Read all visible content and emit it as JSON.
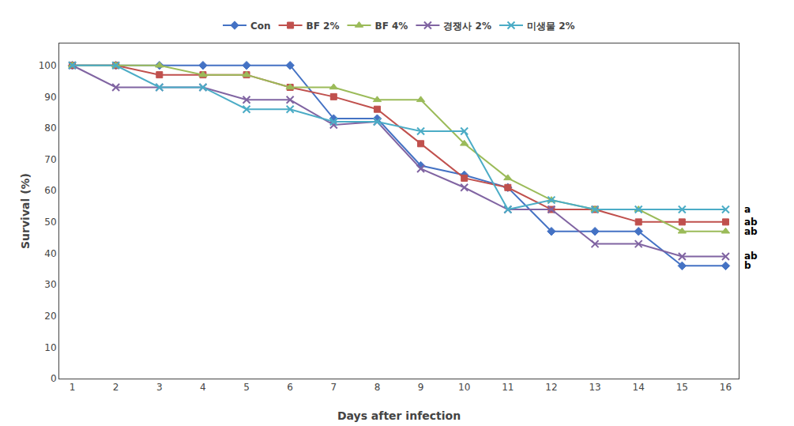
{
  "chart_data": {
    "type": "line",
    "x": [
      1,
      2,
      3,
      4,
      5,
      6,
      7,
      8,
      9,
      10,
      11,
      12,
      13,
      14,
      15,
      16
    ],
    "xlabel": "Days after infection",
    "ylabel": "Survival (%)",
    "xlim": [
      0.7,
      16.3
    ],
    "ylim": [
      0,
      107
    ],
    "xticks": [
      1,
      2,
      3,
      4,
      5,
      6,
      7,
      8,
      9,
      10,
      11,
      12,
      13,
      14,
      15,
      16
    ],
    "yticks": [
      0,
      10,
      20,
      30,
      40,
      50,
      60,
      70,
      80,
      90,
      100
    ],
    "grid": false,
    "legend": "top",
    "series": [
      {
        "name": "Con",
        "color": "#4472C4",
        "marker": "diamond",
        "values": [
          100,
          100,
          100,
          100,
          100,
          100,
          83,
          83,
          68,
          65,
          61,
          47,
          47,
          47,
          36,
          36
        ]
      },
      {
        "name": "BF 2%",
        "color": "#C0504D",
        "marker": "square",
        "values": [
          100,
          100,
          97,
          97,
          97,
          93,
          90,
          86,
          75,
          64,
          61,
          54,
          54,
          50,
          50,
          50
        ]
      },
      {
        "name": "BF 4%",
        "color": "#9BBB59",
        "marker": "triangle-up",
        "values": [
          100,
          100,
          100,
          97,
          97,
          93,
          93,
          89,
          89,
          75,
          64,
          57,
          54,
          54,
          47,
          47
        ]
      },
      {
        "name": "경쟁사 2%",
        "color": "#8064A2",
        "marker": "x",
        "values": [
          100,
          93,
          93,
          93,
          89,
          89,
          81,
          82,
          67,
          61,
          54,
          54,
          43,
          43,
          39,
          39
        ]
      },
      {
        "name": "미생물 2%",
        "color": "#4BACC6",
        "marker": "x",
        "values": [
          100,
          100,
          93,
          93,
          86,
          86,
          82,
          82,
          79,
          79,
          54,
          57,
          54,
          54,
          54,
          54
        ]
      }
    ],
    "annotations": [
      {
        "text": "a",
        "x": 16,
        "y": 54
      },
      {
        "text": "ab",
        "x": 16,
        "y": 50
      },
      {
        "text": "ab",
        "x": 16,
        "y": 47
      },
      {
        "text": "ab",
        "x": 16,
        "y": 39
      },
      {
        "text": "b",
        "x": 16,
        "y": 36
      }
    ]
  }
}
